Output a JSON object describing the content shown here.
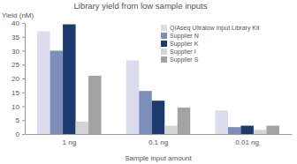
{
  "chart_data": {
    "type": "bar",
    "title": "Library yield from low sample inputs",
    "y_label": "Yield (nM)",
    "x_label": "Sample input amount",
    "categories": [
      "1 ng",
      "0.1 ng",
      "0.01 ng"
    ],
    "series": [
      {
        "name": "QIAseq Ultralow Input Library Kit",
        "color": "#dcdcef",
        "values": [
          37,
          26.5,
          8.5
        ]
      },
      {
        "name": "Supplier N",
        "color": "#7d8fb8",
        "values": [
          30,
          15.5,
          2.5
        ]
      },
      {
        "name": "Supplier K",
        "color": "#1c3a6e",
        "values": [
          39.5,
          12,
          3
        ]
      },
      {
        "name": "Supplier I",
        "color": "#d4d4d4",
        "values": [
          4.5,
          3,
          1.5
        ]
      },
      {
        "name": "Supplier S",
        "color": "#a3a3a3",
        "values": [
          21,
          9.5,
          3
        ]
      }
    ],
    "ylim": [
      0,
      40
    ],
    "yticks": [
      0,
      5,
      10,
      15,
      20,
      25,
      30,
      35,
      40
    ],
    "grid": false,
    "legend": "upper right"
  }
}
